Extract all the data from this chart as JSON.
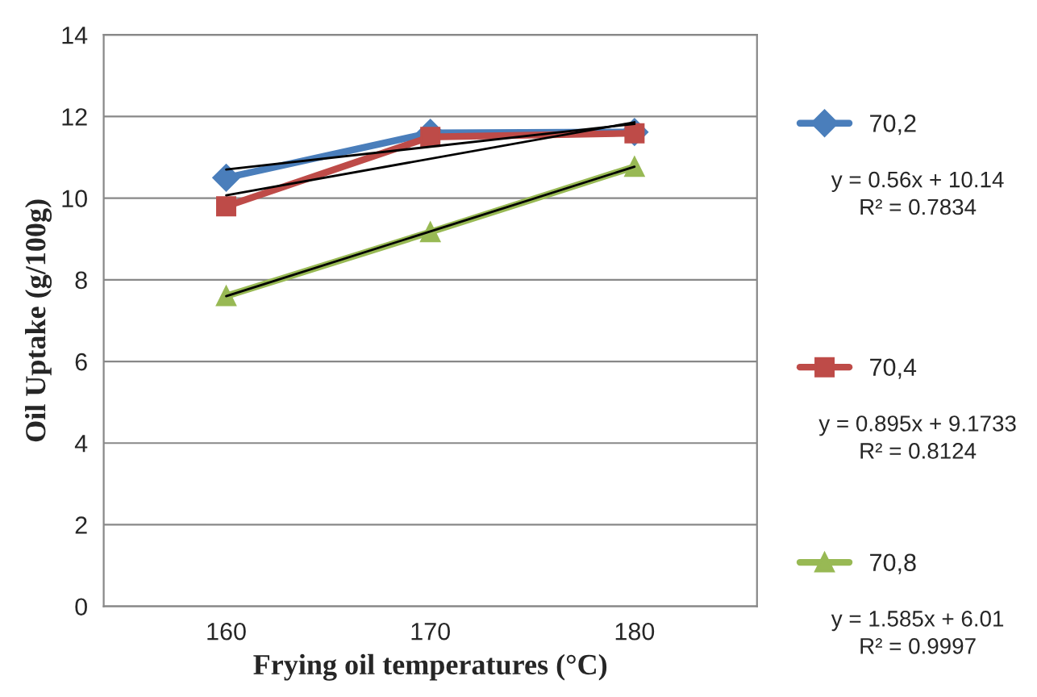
{
  "chart_data": {
    "type": "line",
    "xlabel": "Frying oil temperatures (°C)",
    "ylabel": "Oil Uptake (g/100g)",
    "categories": [
      "160",
      "170",
      "180"
    ],
    "series": [
      {
        "name": "70,2",
        "color": "#4a7ebb",
        "marker": "diamond",
        "values": [
          10.5,
          11.6,
          11.62
        ]
      },
      {
        "name": "70,4",
        "color": "#be4b48",
        "marker": "square",
        "values": [
          9.8,
          11.5,
          11.59
        ]
      },
      {
        "name": "70,8",
        "color": "#98b954",
        "marker": "triangle",
        "values": [
          7.6,
          9.17,
          10.77
        ]
      },
      {
        "color": "#000000",
        "marker": "none",
        "x": [
          "160",
          "180"
        ],
        "values": [
          10.7,
          11.82
        ]
      },
      {
        "color": "#000000",
        "marker": "none",
        "x": [
          "160",
          "180"
        ],
        "values": [
          10.07,
          11.86
        ]
      },
      {
        "color": "#000000",
        "marker": "none",
        "x": [
          "160",
          "180"
        ],
        "values": [
          7.6,
          10.77
        ]
      }
    ],
    "annotations": [
      "y = 0.56x + 10.14\nR² = 0.7834",
      "y = 0.895x + 9.1733\nR² = 0.8124",
      "y = 1.585x + 6.01\nR² = 0.9997"
    ],
    "ylim": [
      0,
      14
    ],
    "yticks": [
      0,
      2,
      4,
      6,
      8,
      10,
      12,
      14
    ],
    "grid": "y",
    "legend": "right",
    "line_style": "solid"
  }
}
